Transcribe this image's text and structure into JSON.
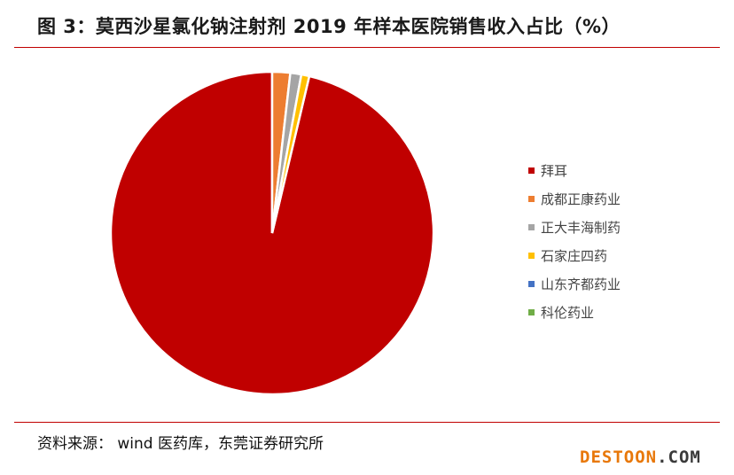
{
  "header": {
    "title": "图 3：莫西沙星氯化钠注射剂 2019 年样本医院销售收入占比（%）"
  },
  "chart_data": {
    "type": "pie",
    "title": "图 3：莫西沙星氯化钠注射剂 2019 年样本医院销售收入占比（%）",
    "legend_position": "right",
    "categories": [
      "拜耳",
      "成都正康药业",
      "正大丰海制药",
      "石家庄四药",
      "山东齐都药业",
      "科伦药业"
    ],
    "values": [
      96.3,
      1.8,
      1.1,
      0.8,
      0.0,
      0.0
    ],
    "colors": [
      "#c00000",
      "#ed7d31",
      "#a5a5a5",
      "#ffc000",
      "#4472c4",
      "#70ad47"
    ],
    "slice_border_color": "#ffffff"
  },
  "footer": {
    "source": "资料来源：  wind 医药库，东莞证券研究所"
  },
  "watermark": {
    "main": "DESTOON",
    "suffix": ".COM"
  }
}
